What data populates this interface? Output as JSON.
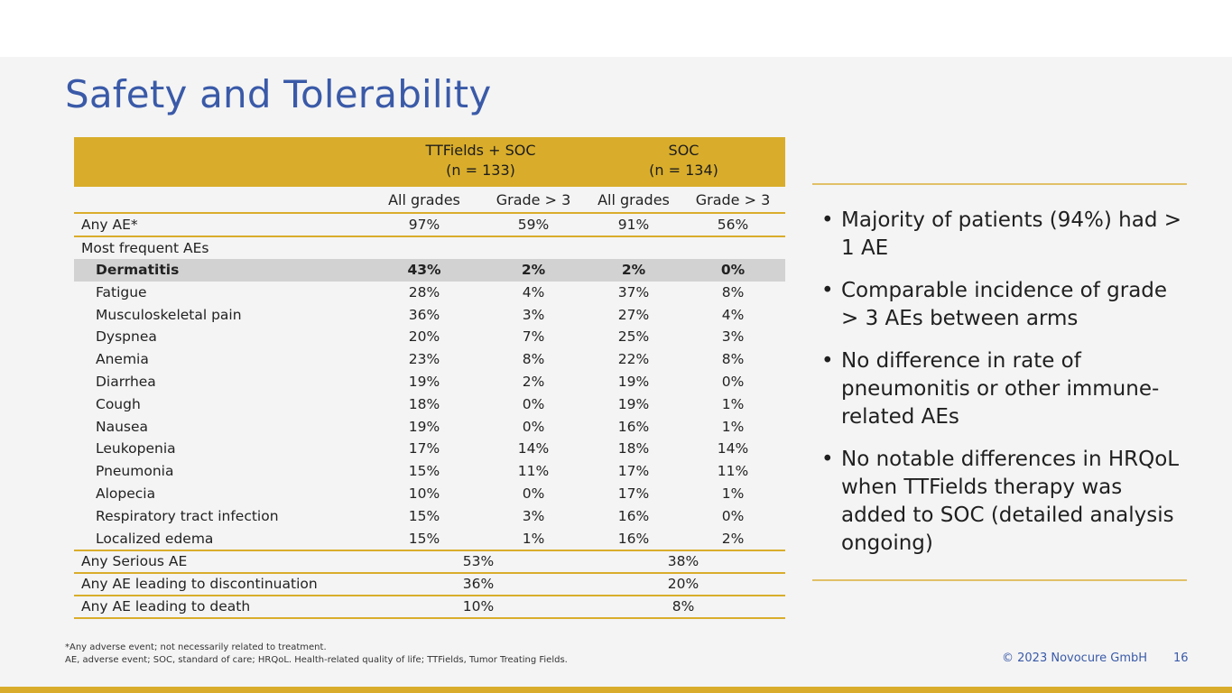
{
  "title": "Safety and Tolerability",
  "table": {
    "groups": [
      {
        "line1": "TTFields + SOC",
        "line2": "(n = 133)"
      },
      {
        "line1": "SOC",
        "line2": "(n = 134)"
      }
    ],
    "subheaders": [
      "All grades",
      "Grade > 3",
      "All grades",
      "Grade > 3"
    ],
    "any_ae": {
      "label": "Any AE*",
      "values": [
        "97%",
        "59%",
        "91%",
        "56%"
      ]
    },
    "section_label": "Most frequent AEs",
    "items": [
      {
        "label": "Dermatitis",
        "values": [
          "43%",
          "2%",
          "2%",
          "0%"
        ]
      },
      {
        "label": "Fatigue",
        "values": [
          "28%",
          "4%",
          "37%",
          "8%"
        ]
      },
      {
        "label": "Musculoskeletal pain",
        "values": [
          "36%",
          "3%",
          "27%",
          "4%"
        ]
      },
      {
        "label": "Dyspnea",
        "values": [
          "20%",
          "7%",
          "25%",
          "3%"
        ]
      },
      {
        "label": "Anemia",
        "values": [
          "23%",
          "8%",
          "22%",
          "8%"
        ]
      },
      {
        "label": "Diarrhea",
        "values": [
          "19%",
          "2%",
          "19%",
          "0%"
        ]
      },
      {
        "label": "Cough",
        "values": [
          "18%",
          "0%",
          "19%",
          "1%"
        ]
      },
      {
        "label": "Nausea",
        "values": [
          "19%",
          "0%",
          "16%",
          "1%"
        ]
      },
      {
        "label": "Leukopenia",
        "values": [
          "17%",
          "14%",
          "18%",
          "14%"
        ]
      },
      {
        "label": "Pneumonia",
        "values": [
          "15%",
          "11%",
          "17%",
          "11%"
        ]
      },
      {
        "label": "Alopecia",
        "values": [
          "10%",
          "0%",
          "17%",
          "1%"
        ]
      },
      {
        "label": "Respiratory tract infection",
        "values": [
          "15%",
          "3%",
          "16%",
          "0%"
        ]
      },
      {
        "label": "Localized edema",
        "values": [
          "15%",
          "1%",
          "16%",
          "2%"
        ]
      }
    ],
    "bottom_rows": [
      {
        "label": "Any Serious AE",
        "values": [
          "53%",
          "38%"
        ]
      },
      {
        "label": "Any AE leading to discontinuation",
        "values": [
          "36%",
          "20%"
        ]
      },
      {
        "label": "Any AE leading to death",
        "values": [
          "10%",
          "8%"
        ]
      }
    ]
  },
  "bullets": [
    "Majority of patients (94%) had > 1 AE",
    "Comparable incidence of grade > 3 AEs between arms",
    "No difference in rate of pneumonitis or other immune-related AEs",
    "No notable differences in HRQoL when TTFields therapy was added to SOC (detailed analysis ongoing)"
  ],
  "footnote_1": "*Any adverse event; not necessarily related to treatment.",
  "footnote_2": "AE, adverse event; SOC, standard of care; HRQoL. Health-related quality of life; TTFields, Tumor Treating Fields.",
  "copyright": "© 2023 Novocure GmbH",
  "page_number": "16",
  "colors": {
    "accent": "#d9ad2b",
    "title": "#3a5aa8",
    "highlight": "#d2d2d2"
  }
}
